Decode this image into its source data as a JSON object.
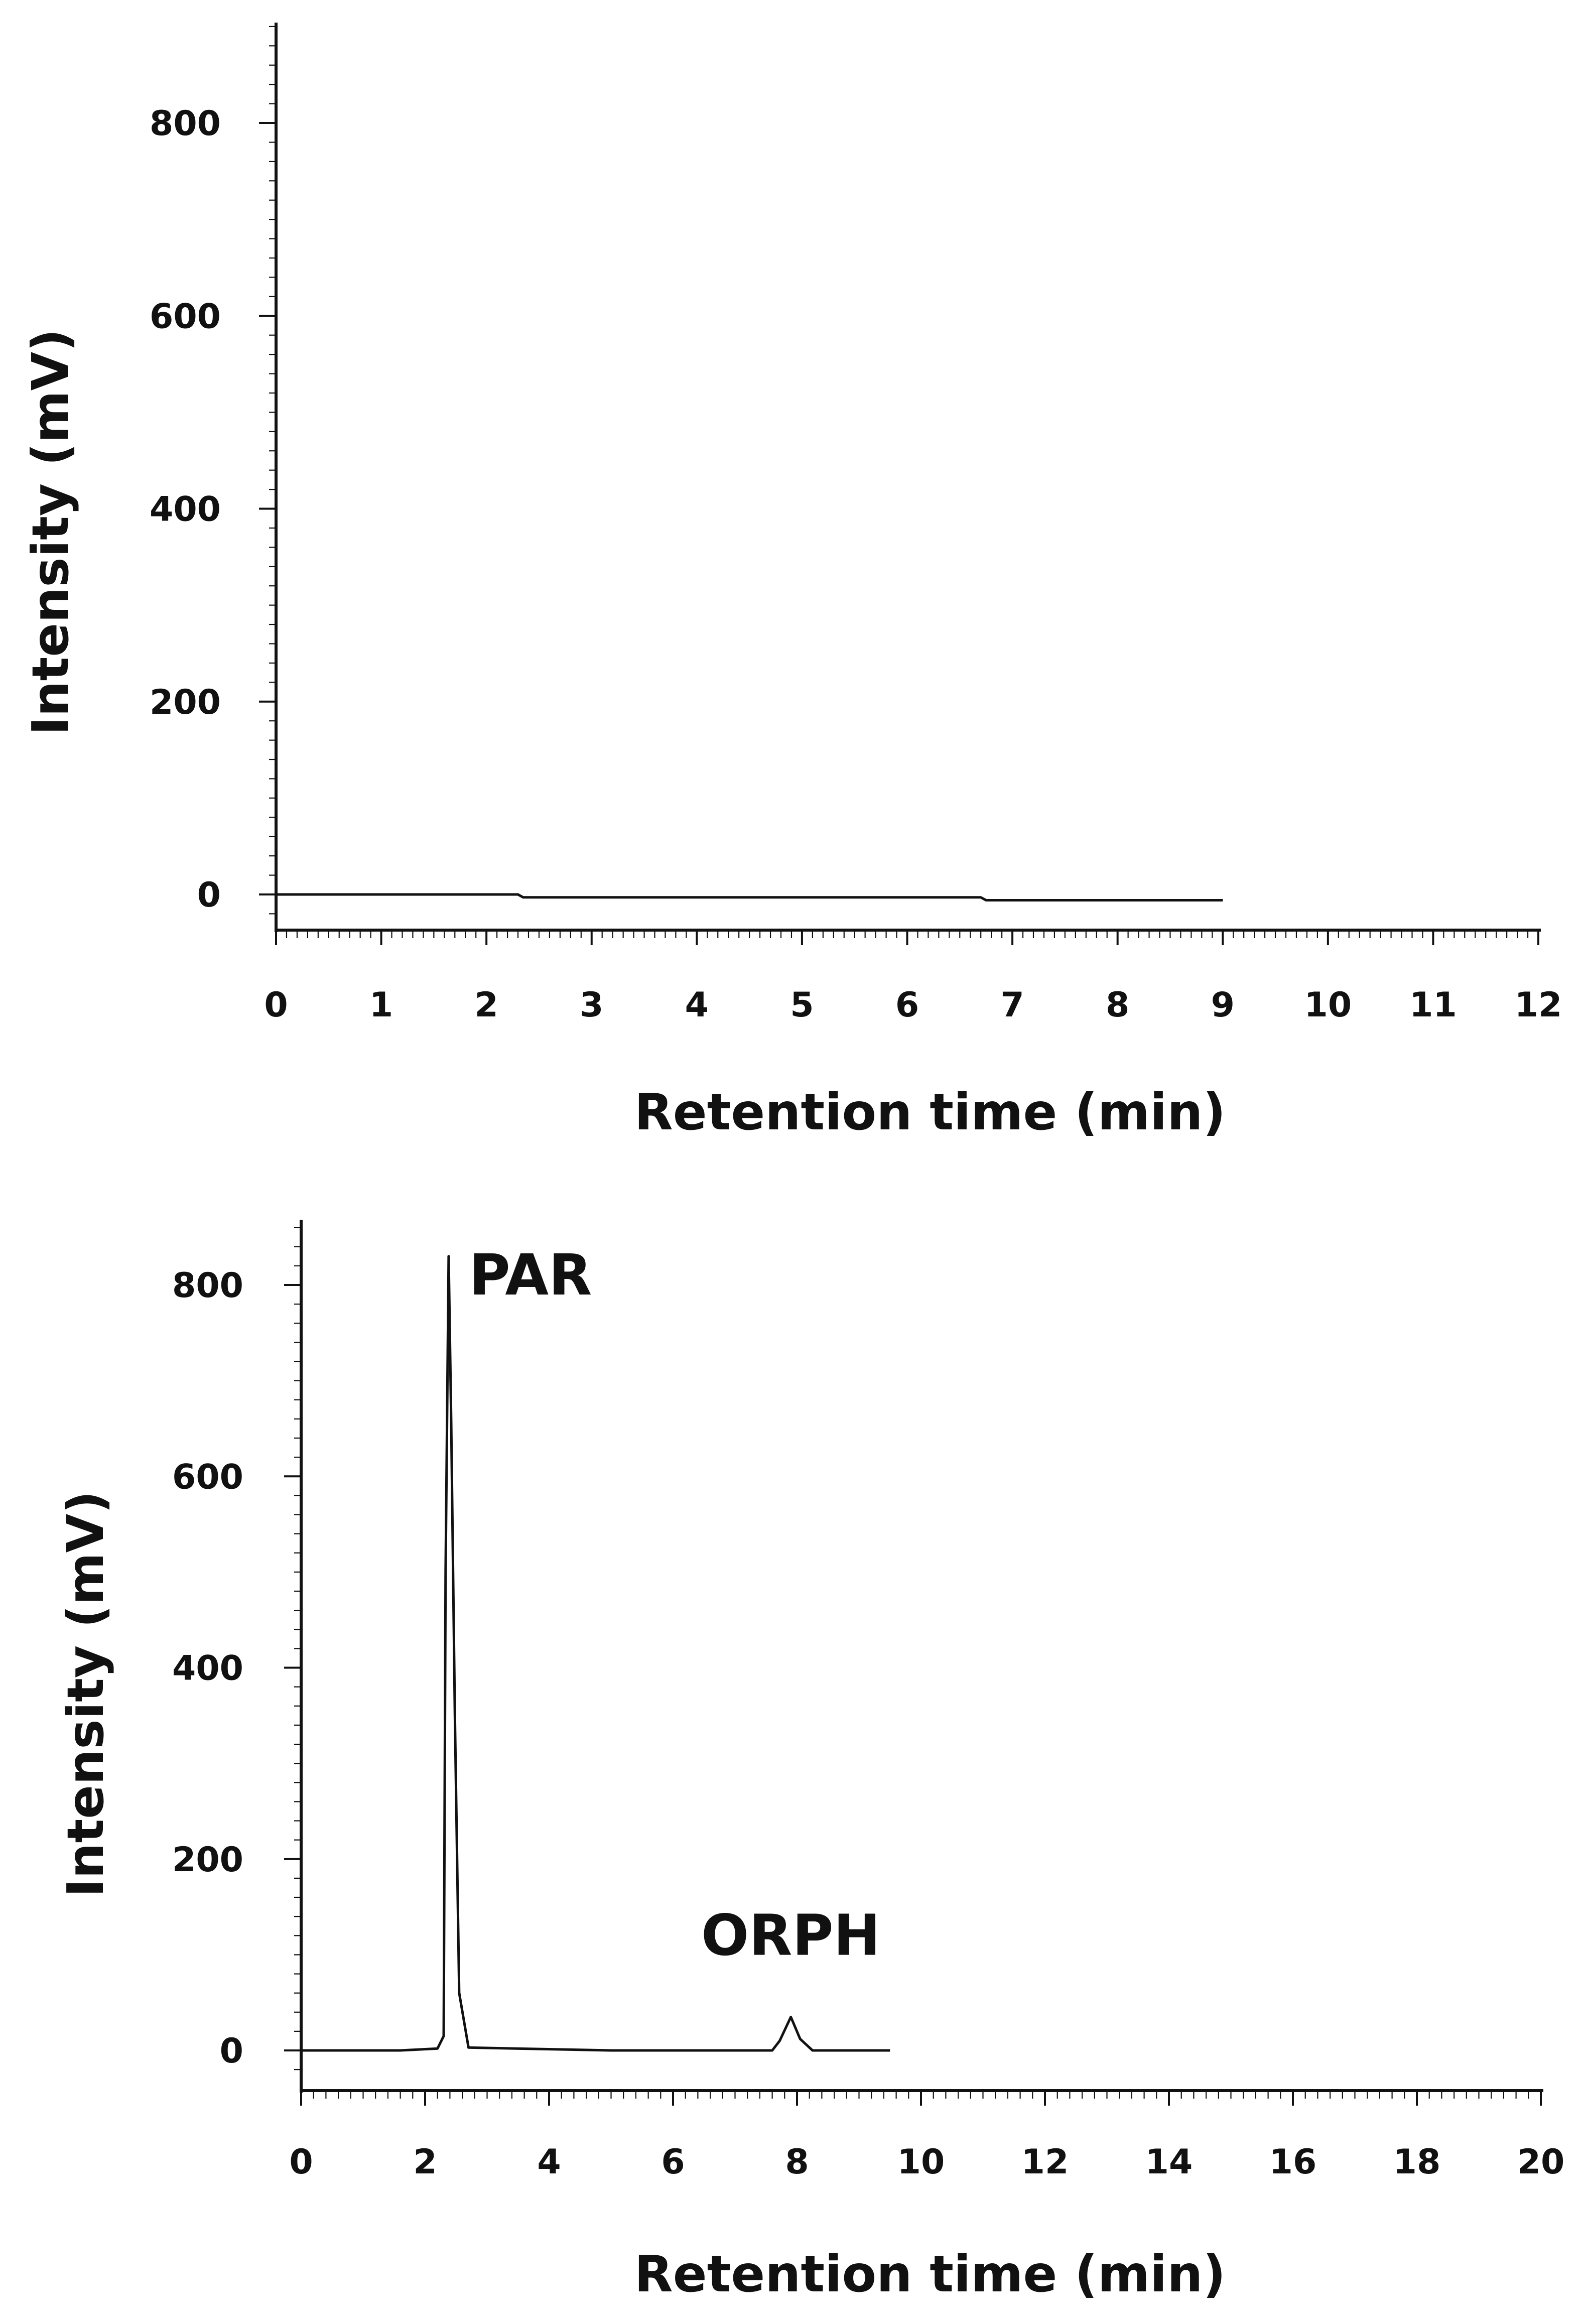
{
  "colors": {
    "line": "#111111",
    "axis": "#111111",
    "background": "#ffffff"
  },
  "chart_data": [
    {
      "type": "line",
      "title": "",
      "xlabel": "Retention time (min)",
      "ylabel": "Intensity (mV)",
      "xlim": [
        0,
        12
      ],
      "ylim": [
        -40,
        900
      ],
      "x_ticks": [
        0,
        1,
        2,
        3,
        4,
        5,
        6,
        7,
        8,
        9,
        10,
        11,
        12
      ],
      "y_ticks": [
        0,
        200,
        400,
        600,
        800
      ],
      "grid": false,
      "legend": "none",
      "annotations": [],
      "series": [
        {
          "x": [
            0,
            2.3,
            2.35,
            6.7,
            6.75,
            9
          ],
          "y": [
            0,
            0,
            -3,
            -3,
            -6,
            -6
          ]
        }
      ]
    },
    {
      "type": "line",
      "title": "",
      "xlabel": "Retention time (min)",
      "ylabel": "Intensity (mV)",
      "xlim": [
        0,
        20
      ],
      "ylim": [
        -40,
        900
      ],
      "x_ticks": [
        0,
        2,
        4,
        6,
        8,
        10,
        12,
        14,
        16,
        18,
        20
      ],
      "y_ticks": [
        0,
        200,
        400,
        600,
        800
      ],
      "grid": false,
      "legend": "none",
      "annotations": [
        {
          "text": "PAR",
          "x": 3.7,
          "y": 790
        },
        {
          "text": "ORPH",
          "x": 7.9,
          "y": 100
        }
      ],
      "series": [
        {
          "x": [
            0,
            1.6,
            2.2,
            2.3,
            2.33,
            2.38,
            2.42,
            2.48,
            2.55,
            2.7,
            5.0,
            7.6,
            7.72,
            7.9,
            8.05,
            8.25,
            9.5
          ],
          "y": [
            0,
            0,
            2,
            15,
            500,
            830,
            660,
            350,
            60,
            3,
            0,
            0,
            10,
            35,
            12,
            0,
            0
          ]
        }
      ]
    }
  ]
}
